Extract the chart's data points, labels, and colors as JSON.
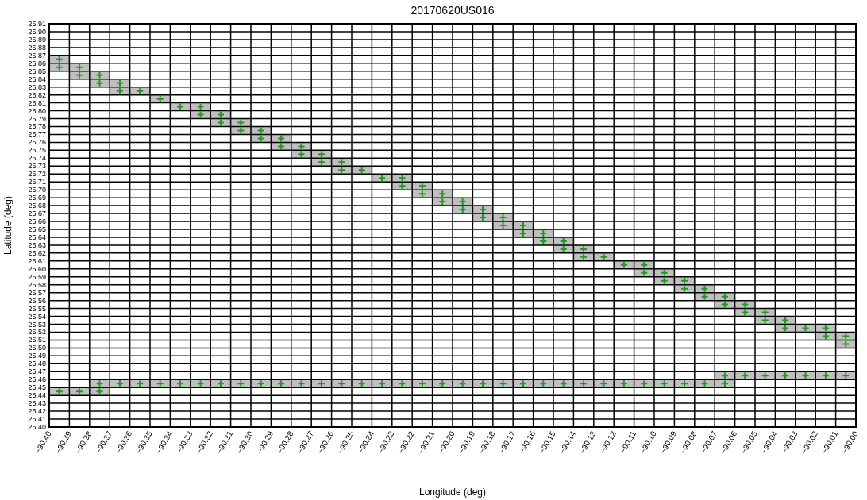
{
  "chart_data": {
    "type": "scatter",
    "title": "20170620US016",
    "xlabel": "Longitude (deg)",
    "ylabel": "Latitude (deg)",
    "grid": true,
    "xlim": [
      -90.4,
      -90.0
    ],
    "ylim": [
      25.4,
      25.91
    ],
    "xticks": [
      {
        "value": -90.4,
        "label": "−90.40"
      },
      {
        "value": -90.39,
        "label": "−90.39"
      },
      {
        "value": -90.38,
        "label": "−90.38"
      },
      {
        "value": -90.37,
        "label": "−90.37"
      },
      {
        "value": -90.36,
        "label": "−90.36"
      },
      {
        "value": -90.35,
        "label": "−90.35"
      },
      {
        "value": -90.34,
        "label": "−90.34"
      },
      {
        "value": -90.33,
        "label": "−90.33"
      },
      {
        "value": -90.32,
        "label": "−90.32"
      },
      {
        "value": -90.31,
        "label": "−90.31"
      },
      {
        "value": -90.3,
        "label": "−90.30"
      },
      {
        "value": -90.29,
        "label": "−90.29"
      },
      {
        "value": -90.28,
        "label": "−90.28"
      },
      {
        "value": -90.27,
        "label": "−90.27"
      },
      {
        "value": -90.26,
        "label": "−90.26"
      },
      {
        "value": -90.25,
        "label": "−90.25"
      },
      {
        "value": -90.24,
        "label": "−90.24"
      },
      {
        "value": -90.23,
        "label": "−90.23"
      },
      {
        "value": -90.22,
        "label": "−90.22"
      },
      {
        "value": -90.21,
        "label": "−90.21"
      },
      {
        "value": -90.2,
        "label": "−90.20"
      },
      {
        "value": -90.19,
        "label": "−90.19"
      },
      {
        "value": -90.18,
        "label": "−90.18"
      },
      {
        "value": -90.17,
        "label": "−90.17"
      },
      {
        "value": -90.16,
        "label": "−90.16"
      },
      {
        "value": -90.15,
        "label": "−90.15"
      },
      {
        "value": -90.14,
        "label": "−90.14"
      },
      {
        "value": -90.13,
        "label": "−90.13"
      },
      {
        "value": -90.12,
        "label": "−90.12"
      },
      {
        "value": -90.11,
        "label": "−90.11"
      },
      {
        "value": -90.1,
        "label": "−90.10"
      },
      {
        "value": -90.09,
        "label": "−90.09"
      },
      {
        "value": -90.08,
        "label": "−90.08"
      },
      {
        "value": -90.07,
        "label": "−90.07"
      },
      {
        "value": -90.06,
        "label": "−90.06"
      },
      {
        "value": -90.05,
        "label": "−90.05"
      },
      {
        "value": -90.04,
        "label": "−90.04"
      },
      {
        "value": -90.03,
        "label": "−90.03"
      },
      {
        "value": -90.02,
        "label": "−90.02"
      },
      {
        "value": -90.01,
        "label": "−90.01"
      },
      {
        "value": -90.0,
        "label": "−90.00"
      }
    ],
    "yticks": [
      {
        "value": 25.4,
        "label": "25.40"
      },
      {
        "value": 25.41,
        "label": "25.41"
      },
      {
        "value": 25.42,
        "label": "25.42"
      },
      {
        "value": 25.43,
        "label": "25.43"
      },
      {
        "value": 25.44,
        "label": "25.44"
      },
      {
        "value": 25.45,
        "label": "25.45"
      },
      {
        "value": 25.46,
        "label": "25.46"
      },
      {
        "value": 25.47,
        "label": "25.47"
      },
      {
        "value": 25.48,
        "label": "25.48"
      },
      {
        "value": 25.49,
        "label": "25.49"
      },
      {
        "value": 25.5,
        "label": "25.50"
      },
      {
        "value": 25.51,
        "label": "25.51"
      },
      {
        "value": 25.52,
        "label": "25.52"
      },
      {
        "value": 25.53,
        "label": "25.53"
      },
      {
        "value": 25.54,
        "label": "25.54"
      },
      {
        "value": 25.55,
        "label": "25.55"
      },
      {
        "value": 25.56,
        "label": "25.56"
      },
      {
        "value": 25.57,
        "label": "25.57"
      },
      {
        "value": 25.58,
        "label": "25.58"
      },
      {
        "value": 25.59,
        "label": "25.59"
      },
      {
        "value": 25.6,
        "label": "25.60"
      },
      {
        "value": 25.61,
        "label": "25.61"
      },
      {
        "value": 25.62,
        "label": "25.62"
      },
      {
        "value": 25.63,
        "label": "25.63"
      },
      {
        "value": 25.64,
        "label": "25.64"
      },
      {
        "value": 25.65,
        "label": "25.65"
      },
      {
        "value": 25.66,
        "label": "25.66"
      },
      {
        "value": 25.67,
        "label": "25.67"
      },
      {
        "value": 25.68,
        "label": "25.68"
      },
      {
        "value": 25.69,
        "label": "25.69"
      },
      {
        "value": 25.7,
        "label": "25.70"
      },
      {
        "value": 25.71,
        "label": "25.71"
      },
      {
        "value": 25.72,
        "label": "25.72"
      },
      {
        "value": 25.73,
        "label": "25.73"
      },
      {
        "value": 25.74,
        "label": "25.74"
      },
      {
        "value": 25.75,
        "label": "25.75"
      },
      {
        "value": 25.76,
        "label": "25.76"
      },
      {
        "value": 25.77,
        "label": "25.77"
      },
      {
        "value": 25.78,
        "label": "25.78"
      },
      {
        "value": 25.79,
        "label": "25.79"
      },
      {
        "value": 25.8,
        "label": "25.80"
      },
      {
        "value": 25.81,
        "label": "25.81"
      },
      {
        "value": 25.82,
        "label": "25.82"
      },
      {
        "value": 25.83,
        "label": "25.83"
      },
      {
        "value": 25.84,
        "label": "25.84"
      },
      {
        "value": 25.85,
        "label": "25.85"
      },
      {
        "value": 25.86,
        "label": "25.86"
      },
      {
        "value": 25.87,
        "label": "25.87"
      },
      {
        "value": 25.88,
        "label": "25.88"
      },
      {
        "value": 25.89,
        "label": "25.89"
      },
      {
        "value": 25.9,
        "label": "25.90"
      },
      {
        "value": 25.91,
        "label": "25.91"
      }
    ],
    "series": [
      {
        "marker": "square",
        "color": "#c0c0c0",
        "x": [
          -90.395,
          -90.395,
          -90.385,
          -90.385,
          -90.375,
          -90.375,
          -90.365,
          -90.365,
          -90.355,
          -90.345,
          -90.335,
          -90.325,
          -90.325,
          -90.315,
          -90.315,
          -90.305,
          -90.305,
          -90.295,
          -90.295,
          -90.285,
          -90.285,
          -90.275,
          -90.275,
          -90.265,
          -90.265,
          -90.255,
          -90.255,
          -90.245,
          -90.235,
          -90.225,
          -90.225,
          -90.215,
          -90.215,
          -90.205,
          -90.205,
          -90.195,
          -90.195,
          -90.185,
          -90.185,
          -90.175,
          -90.175,
          -90.165,
          -90.165,
          -90.155,
          -90.155,
          -90.145,
          -90.145,
          -90.135,
          -90.135,
          -90.125,
          -90.115,
          -90.105,
          -90.105,
          -90.095,
          -90.095,
          -90.085,
          -90.085,
          -90.075,
          -90.075,
          -90.065,
          -90.065,
          -90.055,
          -90.055,
          -90.045,
          -90.045,
          -90.035,
          -90.035,
          -90.025,
          -90.015,
          -90.015,
          -90.005,
          -90.005
        ],
        "values": [
          25.865,
          25.855,
          25.855,
          25.845,
          25.845,
          25.835,
          25.835,
          25.825,
          25.825,
          25.815,
          25.805,
          25.805,
          25.795,
          25.795,
          25.785,
          25.785,
          25.775,
          25.775,
          25.765,
          25.765,
          25.755,
          25.755,
          25.745,
          25.745,
          25.735,
          25.735,
          25.725,
          25.725,
          25.715,
          25.715,
          25.705,
          25.705,
          25.695,
          25.695,
          25.685,
          25.685,
          25.675,
          25.675,
          25.665,
          25.665,
          25.655,
          25.655,
          25.645,
          25.645,
          25.635,
          25.635,
          25.625,
          25.625,
          25.615,
          25.615,
          25.605,
          25.605,
          25.595,
          25.595,
          25.585,
          25.585,
          25.575,
          25.575,
          25.565,
          25.565,
          25.555,
          25.555,
          25.545,
          25.545,
          25.535,
          25.535,
          25.525,
          25.525,
          25.525,
          25.515,
          25.515,
          25.505
        ]
      },
      {
        "marker": "square",
        "color": "#c0c0c0",
        "x": [
          -90.395,
          -90.385,
          -90.375,
          -90.375,
          -90.365,
          -90.355,
          -90.345,
          -90.335,
          -90.325,
          -90.315,
          -90.305,
          -90.295,
          -90.285,
          -90.275,
          -90.265,
          -90.255,
          -90.245,
          -90.235,
          -90.225,
          -90.215,
          -90.205,
          -90.195,
          -90.185,
          -90.175,
          -90.165,
          -90.155,
          -90.145,
          -90.135,
          -90.125,
          -90.115,
          -90.105,
          -90.095,
          -90.085,
          -90.075,
          -90.065,
          -90.065,
          -90.055,
          -90.045,
          -90.035,
          -90.025,
          -90.015,
          -90.005
        ],
        "values": [
          25.445,
          25.445,
          25.455,
          25.445,
          25.455,
          25.455,
          25.455,
          25.455,
          25.455,
          25.455,
          25.455,
          25.455,
          25.455,
          25.455,
          25.455,
          25.455,
          25.455,
          25.455,
          25.455,
          25.455,
          25.455,
          25.455,
          25.455,
          25.455,
          25.455,
          25.455,
          25.455,
          25.455,
          25.455,
          25.455,
          25.455,
          25.455,
          25.455,
          25.455,
          25.465,
          25.455,
          25.465,
          25.465,
          25.465,
          25.465,
          25.465,
          25.465
        ]
      },
      {
        "marker": "cross",
        "color": "#1f9a1f",
        "x": [
          -90.395,
          -90.395,
          -90.385,
          -90.385,
          -90.375,
          -90.375,
          -90.365,
          -90.365,
          -90.355,
          -90.345,
          -90.335,
          -90.325,
          -90.325,
          -90.315,
          -90.315,
          -90.305,
          -90.305,
          -90.295,
          -90.295,
          -90.285,
          -90.285,
          -90.275,
          -90.275,
          -90.265,
          -90.265,
          -90.255,
          -90.255,
          -90.245,
          -90.235,
          -90.225,
          -90.225,
          -90.215,
          -90.215,
          -90.205,
          -90.205,
          -90.195,
          -90.195,
          -90.185,
          -90.185,
          -90.175,
          -90.175,
          -90.165,
          -90.165,
          -90.155,
          -90.155,
          -90.145,
          -90.145,
          -90.135,
          -90.135,
          -90.125,
          -90.115,
          -90.105,
          -90.105,
          -90.095,
          -90.095,
          -90.085,
          -90.085,
          -90.075,
          -90.075,
          -90.065,
          -90.065,
          -90.055,
          -90.055,
          -90.045,
          -90.045,
          -90.035,
          -90.035,
          -90.025,
          -90.015,
          -90.015,
          -90.005,
          -90.005
        ],
        "values": [
          25.865,
          25.855,
          25.855,
          25.845,
          25.845,
          25.835,
          25.835,
          25.825,
          25.825,
          25.815,
          25.805,
          25.805,
          25.795,
          25.795,
          25.785,
          25.785,
          25.775,
          25.775,
          25.765,
          25.765,
          25.755,
          25.755,
          25.745,
          25.745,
          25.735,
          25.735,
          25.725,
          25.725,
          25.715,
          25.715,
          25.705,
          25.705,
          25.695,
          25.695,
          25.685,
          25.685,
          25.675,
          25.675,
          25.665,
          25.665,
          25.655,
          25.655,
          25.645,
          25.645,
          25.635,
          25.635,
          25.625,
          25.625,
          25.615,
          25.615,
          25.605,
          25.605,
          25.595,
          25.595,
          25.585,
          25.585,
          25.575,
          25.575,
          25.565,
          25.565,
          25.555,
          25.555,
          25.545,
          25.545,
          25.535,
          25.535,
          25.525,
          25.525,
          25.525,
          25.515,
          25.515,
          25.505
        ]
      },
      {
        "marker": "cross",
        "color": "#1f9a1f",
        "x": [
          -90.395,
          -90.385,
          -90.375,
          -90.375,
          -90.365,
          -90.355,
          -90.345,
          -90.335,
          -90.325,
          -90.315,
          -90.305,
          -90.295,
          -90.285,
          -90.275,
          -90.265,
          -90.255,
          -90.245,
          -90.235,
          -90.225,
          -90.215,
          -90.205,
          -90.195,
          -90.185,
          -90.175,
          -90.165,
          -90.155,
          -90.145,
          -90.135,
          -90.125,
          -90.115,
          -90.105,
          -90.095,
          -90.085,
          -90.075,
          -90.065,
          -90.065,
          -90.055,
          -90.045,
          -90.035,
          -90.025,
          -90.015,
          -90.005
        ],
        "values": [
          25.445,
          25.445,
          25.455,
          25.445,
          25.455,
          25.455,
          25.455,
          25.455,
          25.455,
          25.455,
          25.455,
          25.455,
          25.455,
          25.455,
          25.455,
          25.455,
          25.455,
          25.455,
          25.455,
          25.455,
          25.455,
          25.455,
          25.455,
          25.455,
          25.455,
          25.455,
          25.455,
          25.455,
          25.455,
          25.455,
          25.455,
          25.455,
          25.455,
          25.455,
          25.465,
          25.455,
          25.465,
          25.465,
          25.465,
          25.465,
          25.465,
          25.465
        ]
      }
    ]
  }
}
